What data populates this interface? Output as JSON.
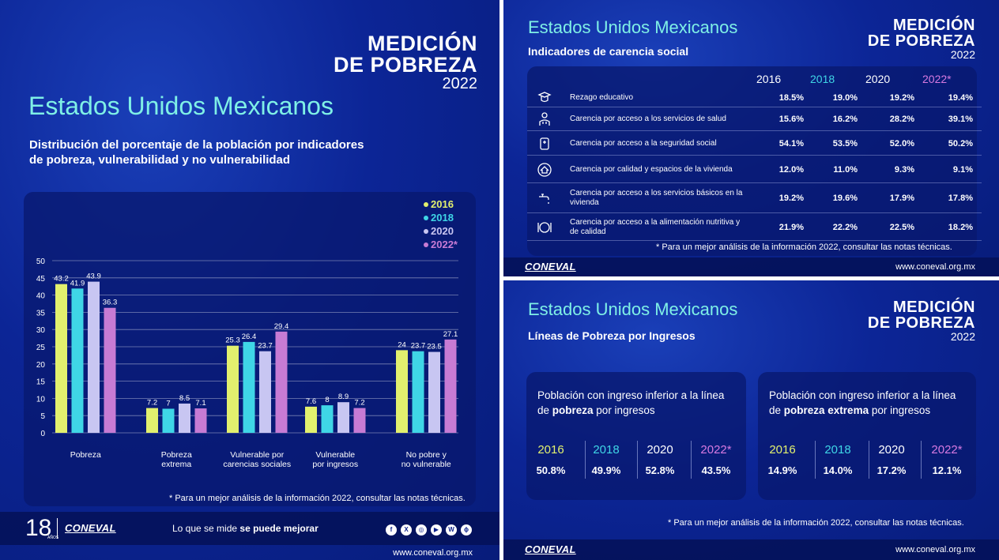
{
  "brand": {
    "line1": "MEDICIÓN",
    "line2": "DE POBREZA",
    "year": "2022"
  },
  "colors": {
    "c2016": "#e2f06e",
    "c2018": "#3fd6e6",
    "c2020": "#c8c6f2",
    "c2022": "#c77bd4",
    "title": "#7ff0e6"
  },
  "left": {
    "title": "Estados Unidos Mexicanos",
    "subtitle_l1": "Distribución del porcentaje de la población por indicadores",
    "subtitle_l2": "de pobreza, vulnerabilidad y no vulnerabilidad",
    "note": "* Para un mejor análisis de la información 2022, consultar las notas técnicas.",
    "anniv": "18",
    "anniv_small": "AÑOS",
    "conev": "CONEVAL",
    "slogan_pre": "Lo que se mide ",
    "slogan_bold": "se puede mejorar",
    "social": [
      "f",
      "X",
      "◎",
      "▶",
      "W",
      "ϕ"
    ],
    "url": "www.coneval.org.mx"
  },
  "chart_data": {
    "type": "bar",
    "title": "Distribución del porcentaje de la población por indicadores de pobreza, vulnerabilidad y no vulnerabilidad",
    "ylim": [
      0,
      50
    ],
    "yticks": [
      0,
      5,
      10,
      15,
      20,
      25,
      30,
      35,
      40,
      45,
      50
    ],
    "grid": true,
    "legend_position": "top-right",
    "categories": [
      [
        "Pobreza"
      ],
      [
        "Pobreza",
        "extrema"
      ],
      [
        "Vulnerable por",
        "carencias sociales"
      ],
      [
        "Vulnerable",
        "por ingresos"
      ],
      [
        "No pobre y",
        "no vulnerable"
      ]
    ],
    "series": [
      {
        "name": "2016",
        "values": [
          43.2,
          7.2,
          25.3,
          7.6,
          24.0
        ]
      },
      {
        "name": "2018",
        "values": [
          41.9,
          7.0,
          26.4,
          8.0,
          23.7
        ]
      },
      {
        "name": "2020",
        "values": [
          43.9,
          8.5,
          23.7,
          8.9,
          23.5
        ]
      },
      {
        "name": "2022*",
        "values": [
          36.3,
          7.1,
          29.4,
          7.2,
          27.1
        ]
      }
    ]
  },
  "carencia": {
    "title": "Estados Unidos Mexicanos",
    "subtitle": "Indicadores de carencia social",
    "years": [
      "2016",
      "2018",
      "2020",
      "2022*"
    ],
    "rows": [
      {
        "icon": "graduation-icon",
        "label": "Rezago educativo",
        "values": [
          "18.5%",
          "19.0%",
          "19.2%",
          "19.4%"
        ]
      },
      {
        "icon": "doctor-icon",
        "label": "Carencia por acceso a los servicios de salud",
        "values": [
          "15.6%",
          "16.2%",
          "28.2%",
          "39.1%"
        ]
      },
      {
        "icon": "social-security-icon",
        "label": "Carencia por acceso a la seguridad social",
        "values": [
          "54.1%",
          "53.5%",
          "52.0%",
          "50.2%"
        ]
      },
      {
        "icon": "house-icon",
        "label": "Carencia por calidad y espacios de la vivienda",
        "values": [
          "12.0%",
          "11.0%",
          "9.3%",
          "9.1%"
        ]
      },
      {
        "icon": "faucet-icon",
        "label": "Carencia por acceso a los servicios básicos en la vivienda",
        "values": [
          "19.2%",
          "19.6%",
          "17.9%",
          "17.8%"
        ]
      },
      {
        "icon": "plate-icon",
        "label": "Carencia por acceso a la alimentación nutritiva y de calidad",
        "values": [
          "21.9%",
          "22.2%",
          "22.5%",
          "18.2%"
        ]
      }
    ],
    "note": "* Para un mejor análisis de la información 2022, consultar las notas técnicas.",
    "conev": "CONEVAL",
    "url": "www.coneval.org.mx"
  },
  "lineas": {
    "title": "Estados Unidos Mexicanos",
    "subtitle": "Líneas de Pobreza por Ingresos",
    "box1": {
      "l1": "Población con ingreso inferior a la línea",
      "l2_pre": "de ",
      "l2_bold": "pobreza",
      "l2_post": " por ingresos",
      "years": [
        "2016",
        "2018",
        "2020",
        "2022*"
      ],
      "values": [
        "50.8%",
        "49.9%",
        "52.8%",
        "43.5%"
      ]
    },
    "box2": {
      "l1": "Población con ingreso inferior a la línea",
      "l2_pre": "de ",
      "l2_bold": "pobreza extrema",
      "l2_post": " por ingresos",
      "years": [
        "2016",
        "2018",
        "2020",
        "2022*"
      ],
      "values": [
        "14.9%",
        "14.0%",
        "17.2%",
        "12.1%"
      ]
    },
    "note": "* Para un mejor análisis de la información 2022, consultar las notas técnicas.",
    "conev": "CONEVAL",
    "url": "www.coneval.org.mx"
  }
}
